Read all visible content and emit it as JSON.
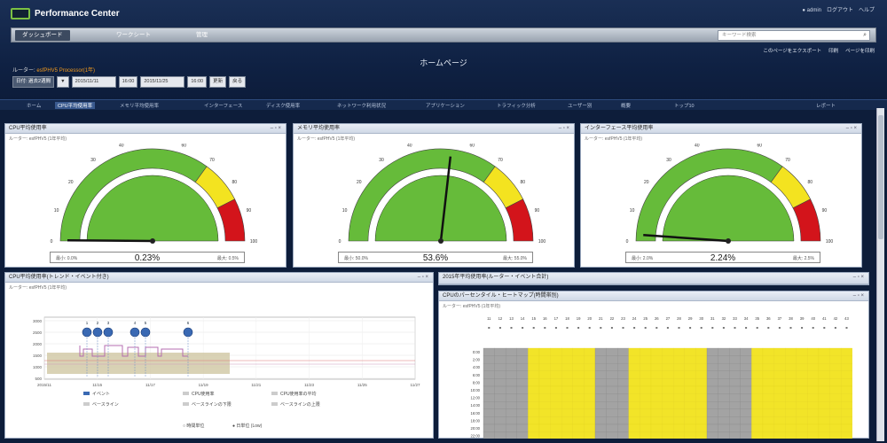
{
  "app": {
    "name": "Performance Center",
    "user_area": "● admin　ログアウト　ヘルプ"
  },
  "nav": {
    "tabs": [
      "ダッシュボード",
      "ワークシート",
      "管理"
    ],
    "search_placeholder": "キーワード検索"
  },
  "sublinks": [
    "このページをエクスポート",
    "印刷",
    "ページを印刷"
  ],
  "page": {
    "title": "ホームページ",
    "label_prefix": "ルーター:",
    "label_value": "esfPHV5 Processor(1年)"
  },
  "controls": [
    "日付: 過去2週間",
    "▼",
    "2015/11/11",
    "16:00",
    "2015/11/25",
    "16:00",
    "更新",
    "戻る"
  ],
  "tabs": [
    "ホーム",
    "CPU平均使用率",
    "メモリ平均使用率",
    "インターフェース",
    "ディスク使用率",
    "ネットワーク利用状況",
    "アプリケーション",
    "トラフィック分析",
    "ユーザー別",
    "概要",
    "トップ10",
    "レポート"
  ],
  "gauges": [
    {
      "title": "CPU平均使用率",
      "subtitle": "ルーター: esfPHV5 (1年平均)",
      "value": 0.23,
      "value_text": "0.23%",
      "left_label": "最小: 0.0%",
      "right_label": "最大: 0.5%",
      "ticks": [
        "0",
        "10",
        "20",
        "30",
        "40",
        "50",
        "60",
        "70",
        "80",
        "90",
        "100"
      ]
    },
    {
      "title": "メモリ平均使用率",
      "subtitle": "ルーター: esfPHV5 (1年平均)",
      "value": 53.6,
      "value_text": "53.6%",
      "left_label": "最小: 50.0%",
      "right_label": "最大: 55.0%",
      "ticks": [
        "0",
        "10",
        "20",
        "30",
        "40",
        "50",
        "60",
        "70",
        "80",
        "90",
        "100"
      ]
    },
    {
      "title": "インターフェース平均使用率",
      "subtitle": "ルーター: esfPHV5 (1年平均)",
      "value": 2.24,
      "value_text": "2.24%",
      "left_label": "最小: 2.0%",
      "right_label": "最大: 2.5%",
      "ticks": [
        "0",
        "10",
        "20",
        "30",
        "40",
        "50",
        "60",
        "70",
        "80",
        "90",
        "100"
      ]
    }
  ],
  "trend": {
    "title": "CPU平均使用率(トレンド・イベント付き)",
    "subtitle": "ルーター: esfPHV5 (1年平均)",
    "ylabels": [
      "3000",
      "2500",
      "2000",
      "1500",
      "1000",
      "500"
    ],
    "xlabels": [
      "2015/11",
      "11/15",
      "11/17",
      "11/19",
      "11/21",
      "11/23",
      "11/25",
      "11/27"
    ],
    "markers": [
      "1",
      "2",
      "3",
      "4",
      "5",
      "6"
    ],
    "legend": [
      "イベント",
      "CPU使用率",
      "CPU使用率の平均",
      "ベースライン",
      "ベースラインの下限",
      "ベースラインの上限"
    ],
    "footer": [
      "○ 時間単位",
      "● 日単位 (Low)"
    ]
  },
  "right_header": {
    "title": "2015年平均使用率(ルーター・イベント合計)"
  },
  "heatmap": {
    "title": "CPUのパーセンタイル・ヒートマップ(時間帯別)",
    "subtitle": "ルーター: esfPHV5 (1年平均)",
    "rows": [
      "0:00",
      "2:00",
      "4:00",
      "6:00",
      "8:00",
      "10:00",
      "12:00",
      "14:00",
      "16:00",
      "18:00",
      "20:00",
      "22:00"
    ],
    "cols": [
      "11",
      "12",
      "13",
      "14",
      "15",
      "16",
      "17",
      "18",
      "19",
      "20",
      "21",
      "22",
      "23",
      "24",
      "25",
      "26",
      "27",
      "28",
      "29",
      "30",
      "31",
      "32",
      "33",
      "34",
      "35",
      "36",
      "37",
      "38",
      "39",
      "40",
      "41",
      "42",
      "43"
    ],
    "gray_cols": [
      0,
      1,
      2,
      3,
      10,
      11,
      12,
      20,
      21,
      22,
      23
    ],
    "colors": {
      "gray": "#a3a3a3",
      "yellow": "#f2e428"
    }
  },
  "colors": {
    "green": "#66bb3a",
    "yellow": "#f3e320",
    "red": "#d3141b",
    "navy": "#0f2143"
  }
}
